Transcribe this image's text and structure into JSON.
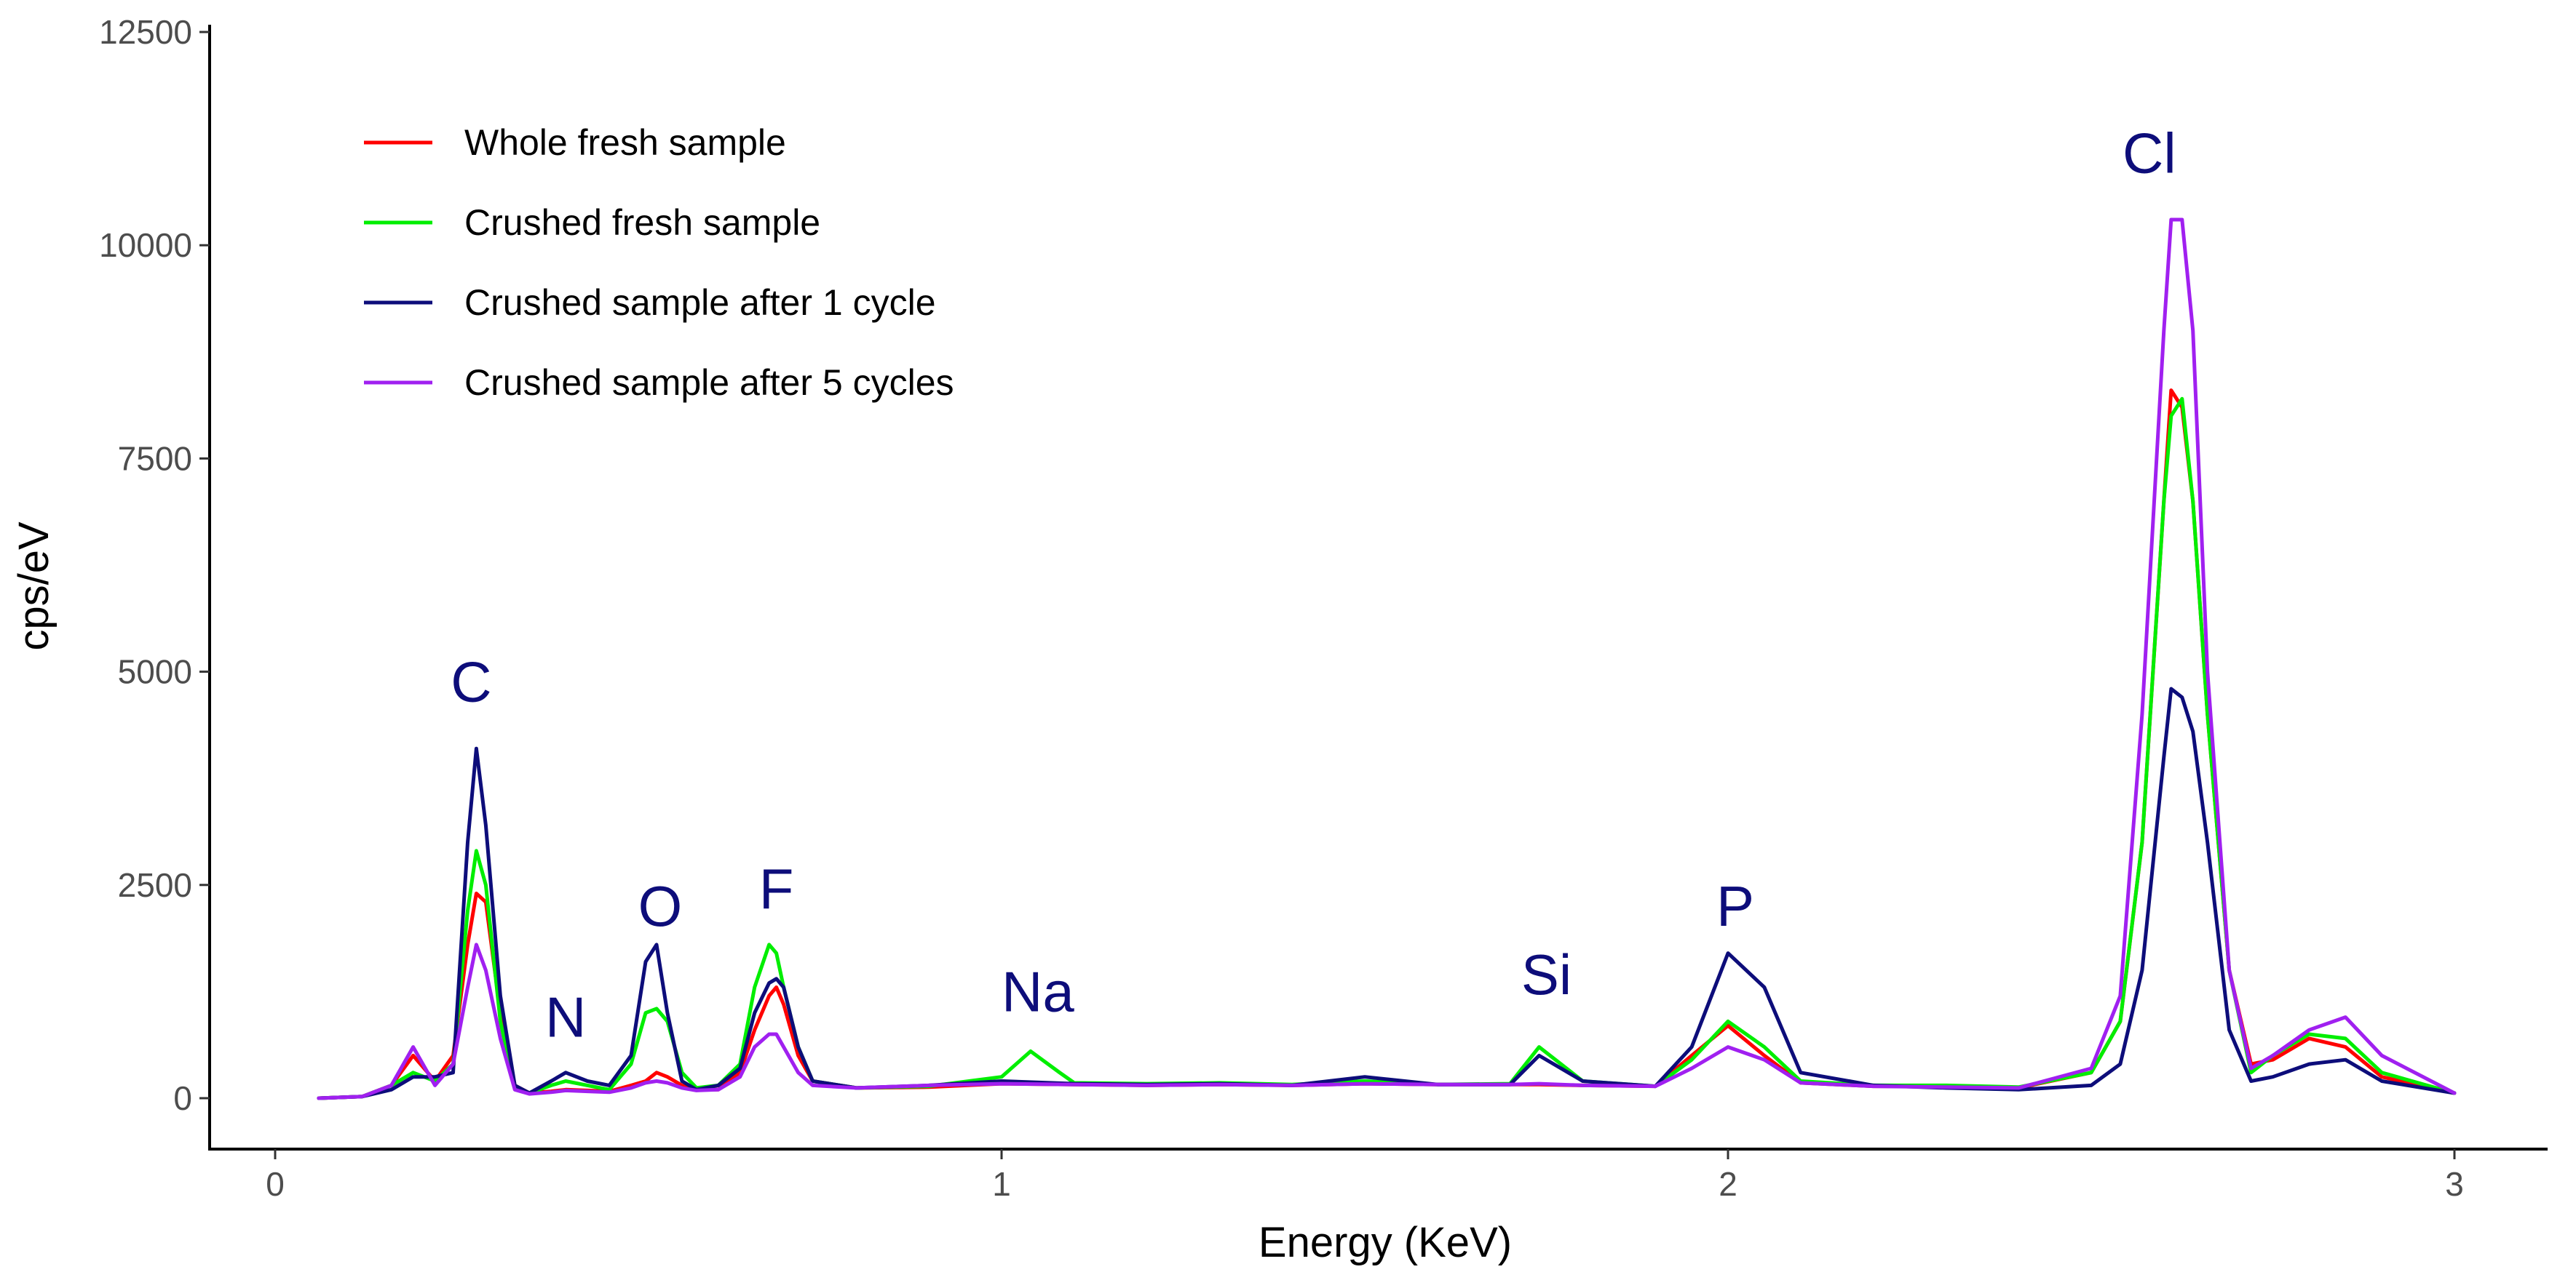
{
  "chart_data": {
    "type": "line",
    "title": "",
    "xlabel": "Energy (KeV)",
    "ylabel": "cps/eV",
    "xlim": [
      -0.1,
      3.15
    ],
    "ylim": [
      -600,
      12500
    ],
    "xticks": [
      0,
      1,
      2,
      3
    ],
    "xtick_labels": [
      "0",
      "1",
      "2",
      "3"
    ],
    "yticks": [
      0,
      2500,
      5000,
      7500,
      10000,
      12500
    ],
    "ytick_labels": [
      "0",
      "2500",
      "5000",
      "7500",
      "10000",
      "12500"
    ],
    "grid": false,
    "legend_position": "top-left",
    "series": [
      {
        "name": "Whole fresh sample",
        "color": "#ff0000",
        "x": [
          0.06,
          0.12,
          0.16,
          0.19,
          0.22,
          0.245,
          0.265,
          0.277,
          0.29,
          0.31,
          0.33,
          0.35,
          0.38,
          0.4,
          0.43,
          0.46,
          0.49,
          0.51,
          0.525,
          0.54,
          0.56,
          0.58,
          0.61,
          0.64,
          0.66,
          0.68,
          0.69,
          0.7,
          0.72,
          0.74,
          0.8,
          0.9,
          1.0,
          1.1,
          1.2,
          1.3,
          1.4,
          1.5,
          1.6,
          1.7,
          1.74,
          1.8,
          1.9,
          1.95,
          2.0,
          2.05,
          2.1,
          2.2,
          2.3,
          2.4,
          2.5,
          2.54,
          2.57,
          2.6,
          2.61,
          2.625,
          2.64,
          2.66,
          2.69,
          2.72,
          2.75,
          2.8,
          2.85,
          2.9,
          3.0
        ],
        "y": [
          0,
          20,
          150,
          500,
          200,
          500,
          1800,
          2400,
          2300,
          1000,
          150,
          60,
          80,
          100,
          90,
          80,
          150,
          200,
          300,
          250,
          150,
          100,
          100,
          300,
          800,
          1200,
          1300,
          1100,
          500,
          200,
          120,
          130,
          170,
          160,
          150,
          160,
          150,
          170,
          160,
          160,
          160,
          150,
          140,
          500,
          850,
          500,
          180,
          140,
          140,
          120,
          300,
          900,
          3000,
          7000,
          8300,
          8100,
          7000,
          4500,
          1500,
          400,
          450,
          700,
          600,
          250,
          60
        ]
      },
      {
        "name": "Crushed fresh sample",
        "color": "#00ee00",
        "x": [
          0.06,
          0.12,
          0.16,
          0.19,
          0.22,
          0.245,
          0.265,
          0.277,
          0.29,
          0.31,
          0.33,
          0.35,
          0.38,
          0.4,
          0.43,
          0.46,
          0.49,
          0.51,
          0.525,
          0.54,
          0.56,
          0.58,
          0.61,
          0.64,
          0.66,
          0.68,
          0.69,
          0.7,
          0.72,
          0.74,
          0.8,
          0.9,
          1.0,
          1.04,
          1.08,
          1.1,
          1.2,
          1.3,
          1.4,
          1.5,
          1.6,
          1.7,
          1.74,
          1.8,
          1.9,
          1.95,
          2.0,
          2.05,
          2.1,
          2.2,
          2.3,
          2.4,
          2.5,
          2.54,
          2.57,
          2.6,
          2.61,
          2.625,
          2.64,
          2.66,
          2.69,
          2.72,
          2.75,
          2.8,
          2.85,
          2.9,
          3.0
        ],
        "y": [
          0,
          20,
          150,
          300,
          200,
          400,
          2200,
          2900,
          2500,
          900,
          120,
          60,
          150,
          200,
          150,
          100,
          400,
          1000,
          1050,
          900,
          300,
          120,
          150,
          400,
          1300,
          1800,
          1700,
          1300,
          600,
          200,
          120,
          140,
          250,
          550,
          300,
          180,
          170,
          180,
          160,
          200,
          160,
          170,
          600,
          200,
          140,
          450,
          900,
          600,
          200,
          150,
          150,
          130,
          300,
          900,
          3000,
          7000,
          8000,
          8200,
          7000,
          4500,
          1500,
          300,
          500,
          750,
          700,
          300,
          60
        ]
      },
      {
        "name": "Crushed sample after 1 cycle",
        "color": "#0d0d7a",
        "x": [
          0.06,
          0.12,
          0.16,
          0.19,
          0.22,
          0.245,
          0.265,
          0.277,
          0.29,
          0.31,
          0.33,
          0.35,
          0.38,
          0.4,
          0.43,
          0.46,
          0.49,
          0.51,
          0.525,
          0.54,
          0.56,
          0.58,
          0.61,
          0.64,
          0.66,
          0.68,
          0.69,
          0.7,
          0.72,
          0.74,
          0.8,
          0.9,
          1.0,
          1.1,
          1.2,
          1.3,
          1.4,
          1.5,
          1.6,
          1.7,
          1.74,
          1.8,
          1.9,
          1.95,
          2.0,
          2.05,
          2.1,
          2.2,
          2.3,
          2.4,
          2.5,
          2.54,
          2.57,
          2.6,
          2.61,
          2.625,
          2.64,
          2.66,
          2.69,
          2.72,
          2.75,
          2.8,
          2.85,
          2.9,
          3.0
        ],
        "y": [
          0,
          20,
          100,
          250,
          250,
          300,
          3000,
          4100,
          3200,
          1200,
          150,
          60,
          200,
          300,
          200,
          150,
          500,
          1600,
          1800,
          1000,
          200,
          100,
          150,
          350,
          1000,
          1350,
          1400,
          1300,
          600,
          200,
          120,
          150,
          200,
          170,
          160,
          170,
          150,
          250,
          160,
          160,
          500,
          200,
          140,
          600,
          1700,
          1300,
          300,
          150,
          120,
          100,
          150,
          400,
          1500,
          4000,
          4800,
          4700,
          4300,
          3000,
          800,
          200,
          250,
          400,
          450,
          200,
          60
        ]
      },
      {
        "name": "Crushed sample after 5 cycles",
        "color": "#a020f0",
        "x": [
          0.06,
          0.12,
          0.16,
          0.19,
          0.22,
          0.245,
          0.265,
          0.277,
          0.29,
          0.31,
          0.33,
          0.35,
          0.38,
          0.4,
          0.43,
          0.46,
          0.49,
          0.51,
          0.525,
          0.54,
          0.56,
          0.58,
          0.61,
          0.64,
          0.66,
          0.68,
          0.69,
          0.7,
          0.72,
          0.74,
          0.8,
          0.9,
          1.0,
          1.1,
          1.2,
          1.3,
          1.4,
          1.5,
          1.6,
          1.7,
          1.74,
          1.8,
          1.9,
          1.95,
          2.0,
          2.05,
          2.1,
          2.2,
          2.3,
          2.4,
          2.5,
          2.54,
          2.57,
          2.6,
          2.61,
          2.625,
          2.64,
          2.66,
          2.69,
          2.72,
          2.75,
          2.8,
          2.85,
          2.9,
          3.0
        ],
        "y": [
          0,
          20,
          150,
          600,
          150,
          400,
          1300,
          1800,
          1500,
          700,
          100,
          50,
          70,
          90,
          80,
          70,
          120,
          180,
          200,
          180,
          120,
          90,
          100,
          250,
          600,
          750,
          750,
          600,
          300,
          150,
          120,
          150,
          170,
          160,
          150,
          160,
          150,
          170,
          160,
          160,
          170,
          150,
          140,
          350,
          600,
          450,
          180,
          140,
          130,
          120,
          350,
          1200,
          4500,
          9000,
          10300,
          10300,
          9000,
          5000,
          1500,
          350,
          500,
          800,
          950,
          500,
          60
        ]
      }
    ],
    "annotations": [
      {
        "text": "C",
        "x": 0.27,
        "y": 4650
      },
      {
        "text": "N",
        "x": 0.4,
        "y": 720
      },
      {
        "text": "O",
        "x": 0.53,
        "y": 2020
      },
      {
        "text": "F",
        "x": 0.69,
        "y": 2220
      },
      {
        "text": "Na",
        "x": 1.05,
        "y": 1020
      },
      {
        "text": "Si",
        "x": 1.75,
        "y": 1220
      },
      {
        "text": "P",
        "x": 2.01,
        "y": 2020
      },
      {
        "text": "Cl",
        "x": 2.58,
        "y": 10850
      }
    ]
  }
}
